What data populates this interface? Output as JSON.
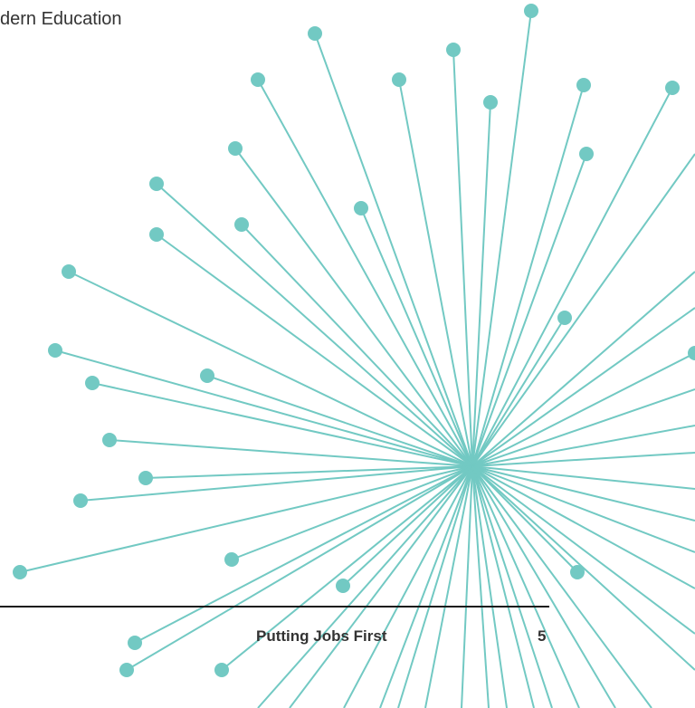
{
  "header": {
    "title": "dern Education"
  },
  "footer": {
    "title": "Putting Jobs First",
    "page_number": "5"
  }
}
